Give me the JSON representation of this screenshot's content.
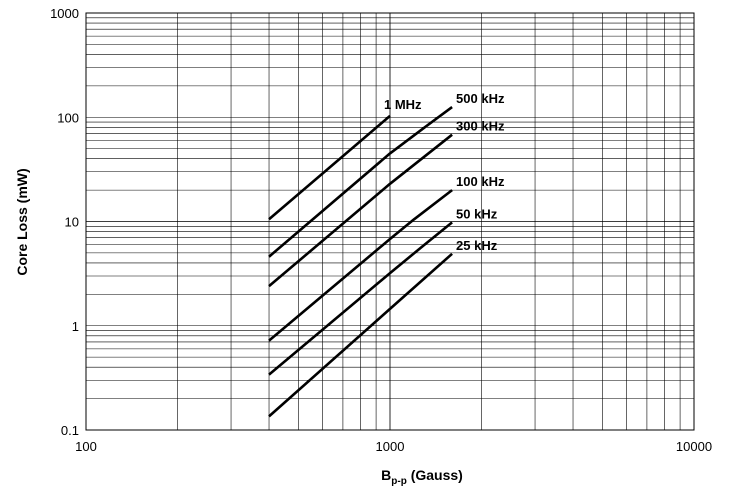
{
  "chart_data": {
    "type": "line",
    "x_scale": "log",
    "y_scale": "log",
    "xlim": [
      100,
      10000
    ],
    "ylim": [
      0.1,
      1000
    ],
    "grid": true,
    "xlabel_main": "B",
    "xlabel_sub": "p-p",
    "xlabel_rest": " (Gauss)",
    "ylabel": "Core Loss (mW)",
    "x_ticks": [
      {
        "value": 100,
        "label": "100"
      },
      {
        "value": 1000,
        "label": "1000"
      },
      {
        "value": 10000,
        "label": "10000"
      }
    ],
    "y_ticks": [
      {
        "value": 0.1,
        "label": "0.1"
      },
      {
        "value": 1,
        "label": "1"
      },
      {
        "value": 10,
        "label": "10"
      },
      {
        "value": 100,
        "label": "100"
      },
      {
        "value": 1000,
        "label": "1000"
      }
    ],
    "series": [
      {
        "name": "1 MHz",
        "color": "#000000",
        "x": [
          400,
          1000
        ],
        "y": [
          10.5,
          103
        ]
      },
      {
        "name": "500 kHz",
        "color": "#000000",
        "x": [
          400,
          1000,
          1300,
          1600
        ],
        "y": [
          4.6,
          45,
          80,
          125
        ]
      },
      {
        "name": "300 kHz",
        "color": "#000000",
        "x": [
          400,
          1000,
          1600
        ],
        "y": [
          2.4,
          23,
          68
        ]
      },
      {
        "name": "100 kHz",
        "color": "#000000",
        "x": [
          400,
          1000,
          1200,
          1600
        ],
        "y": [
          0.72,
          6.8,
          10.5,
          20
        ]
      },
      {
        "name": "50 kHz",
        "color": "#000000",
        "x": [
          400,
          1000,
          1300,
          1600
        ],
        "y": [
          0.34,
          3.2,
          6.0,
          9.8
        ]
      },
      {
        "name": "25 kHz",
        "color": "#000000",
        "x": [
          400,
          1000,
          1600
        ],
        "y": [
          0.135,
          1.45,
          4.9
        ]
      }
    ]
  }
}
